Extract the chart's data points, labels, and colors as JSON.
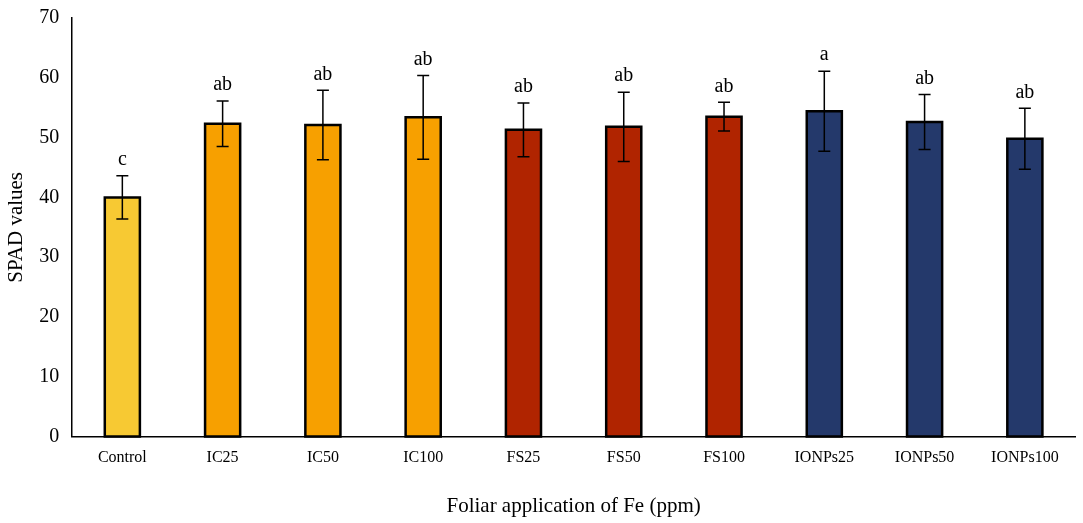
{
  "chart_data": {
    "type": "bar",
    "xlabel": "Foliar application of Fe (ppm)",
    "ylabel": "SPAD values",
    "categories": [
      "Control",
      "IC25",
      "IC50",
      "IC100",
      "FS25",
      "FS50",
      "FS100",
      "IONPs25",
      "IONPs50",
      "IONPs100"
    ],
    "values": [
      40.0,
      52.3,
      52.1,
      53.4,
      51.3,
      51.8,
      53.5,
      54.4,
      52.6,
      49.8
    ],
    "errors": [
      3.6,
      3.8,
      5.8,
      7.0,
      4.5,
      5.8,
      2.4,
      6.7,
      4.6,
      5.1
    ],
    "colors": [
      "#f7c933",
      "#f7a000",
      "#f7a000",
      "#f7a000",
      "#b02400",
      "#b02400",
      "#b02400",
      "#24396b",
      "#24396b",
      "#24396b"
    ],
    "ylim": [
      0,
      70
    ],
    "yticks": [
      0,
      10,
      20,
      30,
      40,
      50,
      60,
      70
    ],
    "grid": false,
    "legend": false,
    "annotations": [
      {
        "text": "c",
        "x": "Control",
        "y": 43.6
      },
      {
        "text": "ab",
        "x": "IC25",
        "y": 56.1
      },
      {
        "text": "ab",
        "x": "IC50",
        "y": 57.9
      },
      {
        "text": "ab",
        "x": "IC100",
        "y": 60.4
      },
      {
        "text": "ab",
        "x": "FS25",
        "y": 55.8
      },
      {
        "text": "ab",
        "x": "FS50",
        "y": 57.6
      },
      {
        "text": "ab",
        "x": "FS100",
        "y": 55.9
      },
      {
        "text": "a",
        "x": "IONPs25",
        "y": 61.1
      },
      {
        "text": "ab",
        "x": "IONPs50",
        "y": 57.2
      },
      {
        "text": "ab",
        "x": "IONPs100",
        "y": 54.9
      }
    ]
  }
}
